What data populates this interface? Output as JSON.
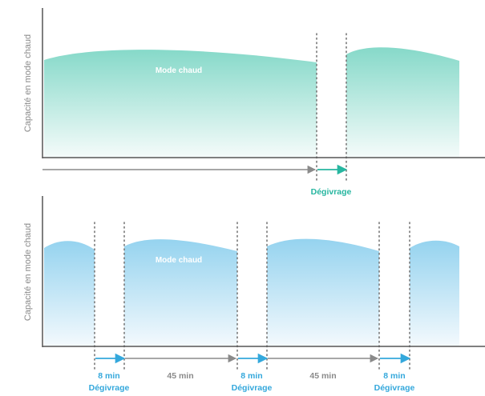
{
  "colors": {
    "teal_accent": "#27b6a0",
    "teal_fill_top": "#86d9c9",
    "blue_accent": "#34a8dc",
    "blue_fill_top": "#95d3ef",
    "axis": "#555555",
    "gray_arrow": "#8a8a8a"
  },
  "top_panel": {
    "y_axis_label": "Capacité en mode chaud",
    "mode_label": "Mode chaud",
    "defrost_label": "Dégivrage"
  },
  "bottom_panel": {
    "y_axis_label": "Capacité en mode chaud",
    "mode_label": "Mode chaud",
    "cycle": [
      {
        "duration": "8 min",
        "label": "Dégivrage"
      },
      {
        "duration": "45 min"
      },
      {
        "duration": "8 min",
        "label": "Dégivrage"
      },
      {
        "duration": "45 min"
      },
      {
        "duration": "8 min",
        "label": "Dégivrage"
      }
    ]
  }
}
